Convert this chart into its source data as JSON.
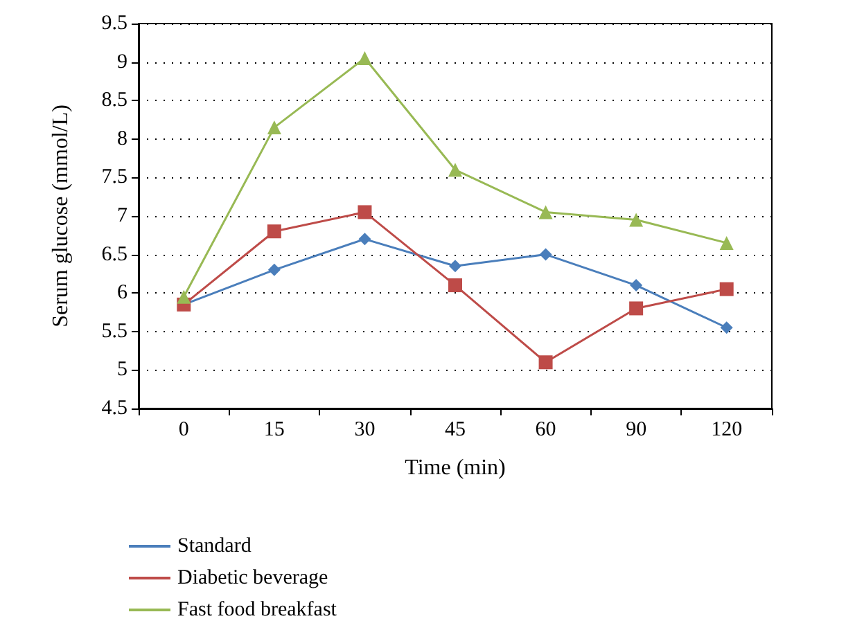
{
  "chart_data": {
    "type": "line",
    "xlabel": "Time (min)",
    "ylabel": "Serum glucose (mmol/L)",
    "categories": [
      "0",
      "15",
      "30",
      "45",
      "60",
      "90",
      "120"
    ],
    "ylim": [
      4.5,
      9.5
    ],
    "yticks": [
      4.5,
      5,
      5.5,
      6,
      6.5,
      7,
      7.5,
      8,
      8.5,
      9,
      9.5
    ],
    "grid": "y",
    "legend": "bottom",
    "series": [
      {
        "name": "Standard",
        "color": "#4a7ebb",
        "marker": "diamond",
        "values": [
          5.85,
          6.3,
          6.7,
          6.35,
          6.5,
          6.1,
          5.55
        ]
      },
      {
        "name": "Diabetic beverage",
        "color": "#be4b48",
        "marker": "square",
        "values": [
          5.85,
          6.8,
          7.05,
          6.1,
          5.1,
          5.8,
          6.05
        ]
      },
      {
        "name": "Fast food breakfast",
        "color": "#98b954",
        "marker": "triangle",
        "values": [
          5.95,
          8.15,
          9.05,
          7.6,
          7.05,
          6.95,
          6.65
        ]
      }
    ]
  }
}
